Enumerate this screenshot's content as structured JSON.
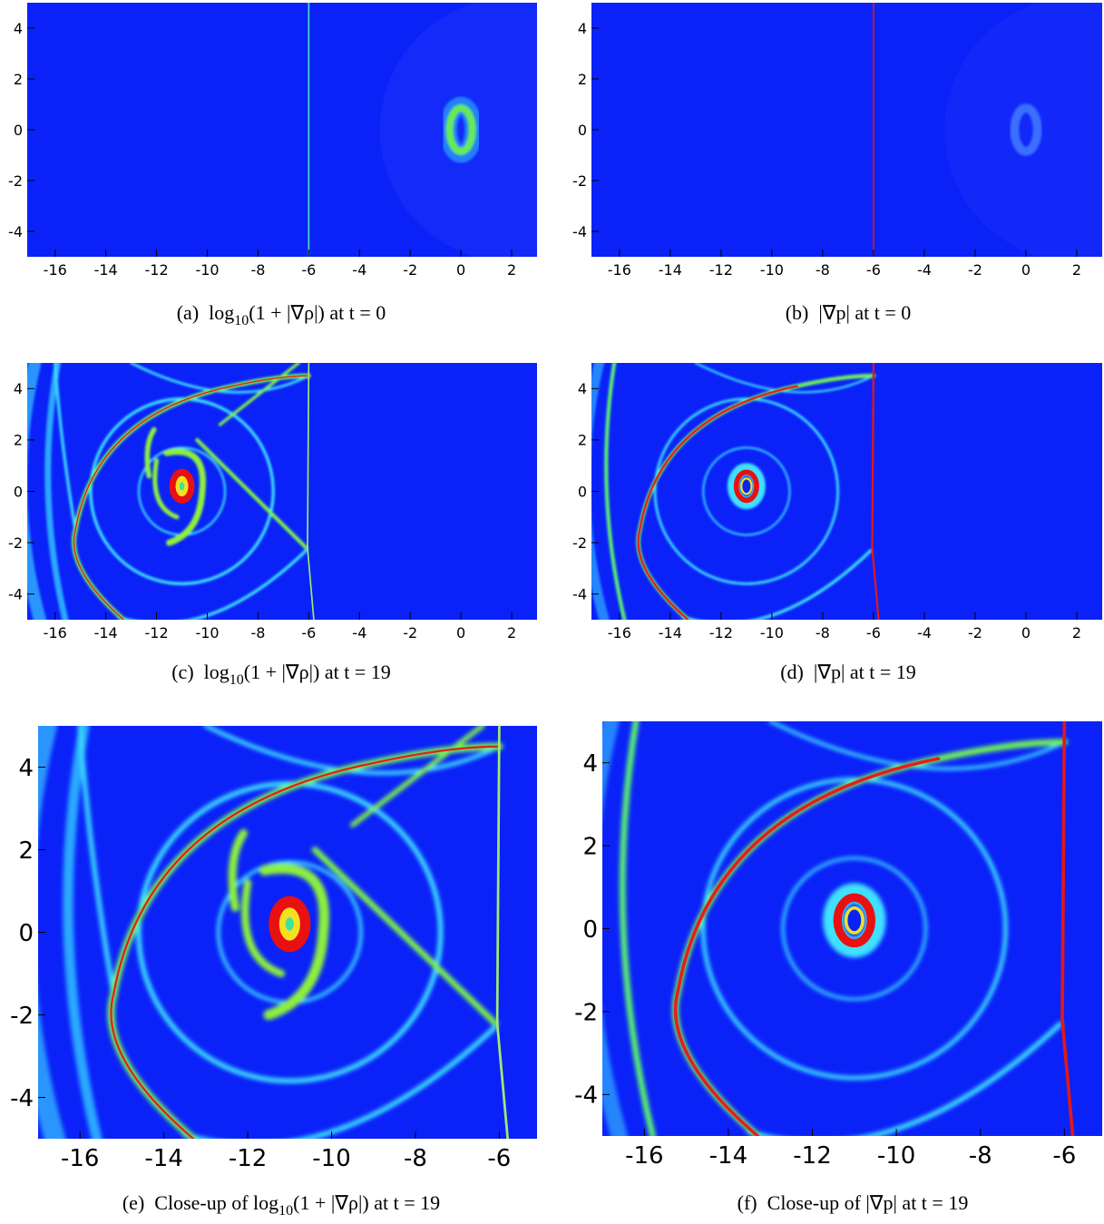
{
  "panels": [
    {
      "caption": {
        "label": "(a)",
        "pre": "log",
        "sub": "10",
        "post": "(1 + |∇ρ|) at t = 0"
      },
      "xlim": [
        -17.1,
        3
      ],
      "ylim": [
        -5,
        5
      ],
      "xticks": [
        -16,
        -14,
        -12,
        -10,
        -8,
        -6,
        -4,
        -2,
        0,
        2
      ],
      "yticks": [
        -4,
        -2,
        0,
        2,
        4
      ]
    },
    {
      "caption": {
        "label": "(b)",
        "post": "|∇p| at t = 0"
      },
      "xlim": [
        -17.1,
        3
      ],
      "ylim": [
        -5,
        5
      ],
      "xticks": [
        -16,
        -14,
        -12,
        -10,
        -8,
        -6,
        -4,
        -2,
        0,
        2
      ],
      "yticks": [
        -4,
        -2,
        0,
        2,
        4
      ]
    },
    {
      "caption": {
        "label": "(c)",
        "pre": "log",
        "sub": "10",
        "post": "(1 + |∇ρ|) at t = 19"
      },
      "xlim": [
        -17.1,
        3
      ],
      "ylim": [
        -5,
        5
      ],
      "xticks": [
        -16,
        -14,
        -12,
        -10,
        -8,
        -6,
        -4,
        -2,
        0,
        2
      ],
      "yticks": [
        -4,
        -2,
        0,
        2,
        4
      ]
    },
    {
      "caption": {
        "label": "(d)",
        "post": "|∇p| at t = 19"
      },
      "xlim": [
        -17.1,
        3
      ],
      "ylim": [
        -5,
        5
      ],
      "xticks": [
        -16,
        -14,
        -12,
        -10,
        -8,
        -6,
        -4,
        -2,
        0,
        2
      ],
      "yticks": [
        -4,
        -2,
        0,
        2,
        4
      ]
    },
    {
      "caption": {
        "label": "(e)",
        "pre": "Close-up of log",
        "sub": "10",
        "post": "(1 + |∇ρ|) at t = 19"
      },
      "xlim": [
        -17,
        -5.1
      ],
      "ylim": [
        -5,
        5
      ],
      "xticks": [
        -16,
        -14,
        -12,
        -10,
        -8,
        -6
      ],
      "yticks": [
        -4,
        -2,
        0,
        2,
        4
      ]
    },
    {
      "caption": {
        "label": "(f)",
        "post": "Close-up of |∇p| at t = 19"
      },
      "xlim": [
        -17,
        -5.1
      ],
      "ylim": [
        -5,
        5
      ],
      "xticks": [
        -16,
        -14,
        -12,
        -10,
        -8,
        -6
      ],
      "yticks": [
        -4,
        -2,
        0,
        2,
        4
      ]
    }
  ]
}
